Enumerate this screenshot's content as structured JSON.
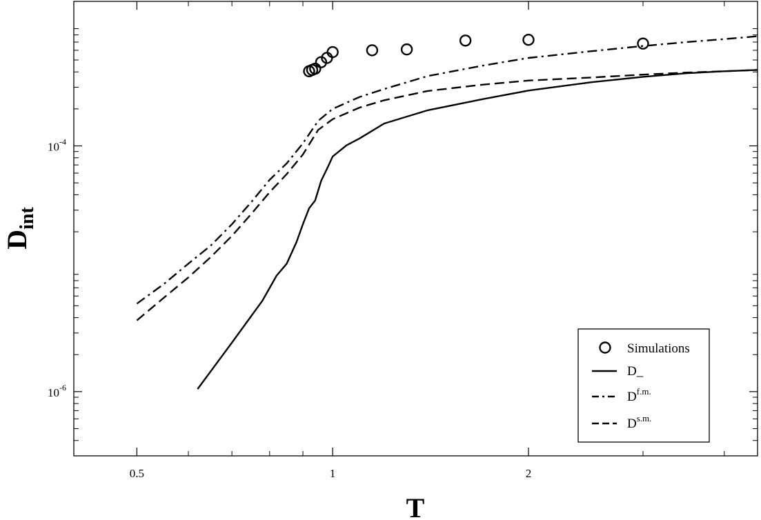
{
  "chart_data": {
    "type": "line",
    "xlabel": "T",
    "ylabel_main": "D",
    "ylabel_sub": "int",
    "x_scale": "log",
    "y_scale": "log",
    "xlim": [
      0.4,
      4.5
    ],
    "ylim": [
      3e-07,
      0.0015
    ],
    "x_ticks": [
      {
        "value": 0.5,
        "label": "0.5"
      },
      {
        "value": 1,
        "label": "1"
      },
      {
        "value": 2,
        "label": "2"
      }
    ],
    "y_ticks": [
      {
        "value": 0.0001,
        "base": "10",
        "exp": "-4"
      },
      {
        "value": 1e-06,
        "base": "10",
        "exp": "-6"
      }
    ],
    "grid": false,
    "legend_position": "bottom-right",
    "series": [
      {
        "name": "Simulations",
        "style": "markers",
        "x": [
          0.92,
          0.93,
          0.94,
          0.96,
          0.98,
          1.0,
          1.15,
          1.3,
          1.6,
          2.0,
          3.0
        ],
        "y": [
          0.000405,
          0.000415,
          0.000425,
          0.00048,
          0.00052,
          0.00058,
          0.0006,
          0.00061,
          0.00072,
          0.00073,
          0.00068
        ]
      },
      {
        "name": "D_",
        "name_base": "D",
        "name_sup": "",
        "name_sub": "_",
        "style": "solid",
        "x": [
          0.62,
          0.7,
          0.78,
          0.82,
          0.85,
          0.88,
          0.9,
          0.92,
          0.94,
          0.96,
          0.98,
          1.0,
          1.05,
          1.1,
          1.2,
          1.4,
          1.7,
          2.0,
          2.5,
          3.0,
          3.5,
          4.0,
          4.5
        ],
        "y": [
          1.05e-06,
          2.5e-06,
          5.5e-06,
          8.8e-06,
          1.1e-05,
          1.65e-05,
          2.3e-05,
          3.1e-05,
          3.6e-05,
          5.2e-05,
          6.5e-05,
          8.2e-05,
          0.000101,
          0.000115,
          0.000152,
          0.000195,
          0.00024,
          0.000282,
          0.00033,
          0.000365,
          0.00039,
          0.000405,
          0.000415
        ]
      },
      {
        "name": "Df.m.",
        "name_base": "D",
        "name_sup": "f.m.",
        "name_sub": "",
        "style": "dashdot",
        "x": [
          0.5,
          0.55,
          0.6,
          0.65,
          0.7,
          0.75,
          0.8,
          0.85,
          0.9,
          0.95,
          1.0,
          1.1,
          1.2,
          1.4,
          1.7,
          2.0,
          2.5,
          3.0,
          3.5,
          4.0,
          4.5
        ],
        "y": [
          5.2e-06,
          7.5e-06,
          1.1e-05,
          1.55e-05,
          2.3e-05,
          3.5e-05,
          5.3e-05,
          7.2e-05,
          0.000105,
          0.00016,
          0.0002,
          0.00025,
          0.00029,
          0.00037,
          0.00045,
          0.00052,
          0.00059,
          0.00065,
          0.0007,
          0.00074,
          0.00078
        ]
      },
      {
        "name": "Ds.m.",
        "name_base": "D",
        "name_sup": "s.m.",
        "name_sub": "",
        "style": "dashed",
        "x": [
          0.5,
          0.55,
          0.6,
          0.65,
          0.7,
          0.75,
          0.8,
          0.85,
          0.9,
          0.95,
          1.0,
          1.1,
          1.2,
          1.4,
          1.7,
          2.0,
          2.5,
          3.0,
          3.5,
          4.0,
          4.5
        ],
        "y": [
          3.8e-06,
          5.8e-06,
          8.5e-06,
          1.25e-05,
          1.85e-05,
          2.8e-05,
          4.2e-05,
          5.9e-05,
          8.5e-05,
          0.000135,
          0.000165,
          0.000205,
          0.000235,
          0.00028,
          0.000315,
          0.00034,
          0.00036,
          0.00038,
          0.000395,
          0.000405,
          0.000415
        ]
      }
    ]
  }
}
